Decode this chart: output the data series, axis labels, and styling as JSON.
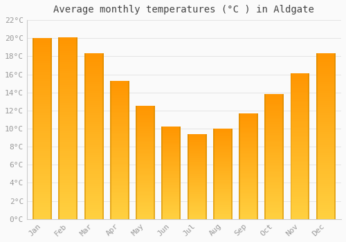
{
  "title": "Average monthly temperatures (°C ) in Aldgate",
  "months": [
    "Jan",
    "Feb",
    "Mar",
    "Apr",
    "May",
    "Jun",
    "Jul",
    "Aug",
    "Sep",
    "Oct",
    "Nov",
    "Dec"
  ],
  "values": [
    20.0,
    20.1,
    18.3,
    15.3,
    12.5,
    10.2,
    9.4,
    10.0,
    11.7,
    13.8,
    16.1,
    18.3
  ],
  "bar_color_bottom": "#FFD966",
  "bar_color_top": "#FFA500",
  "bar_edge_color": "#CC7700",
  "ylim": [
    0,
    22
  ],
  "ytick_step": 2,
  "background_color": "#FAFAFA",
  "grid_color": "#E0E0E0",
  "title_fontsize": 10,
  "tick_fontsize": 8,
  "tick_color": "#999999",
  "font_family": "monospace"
}
